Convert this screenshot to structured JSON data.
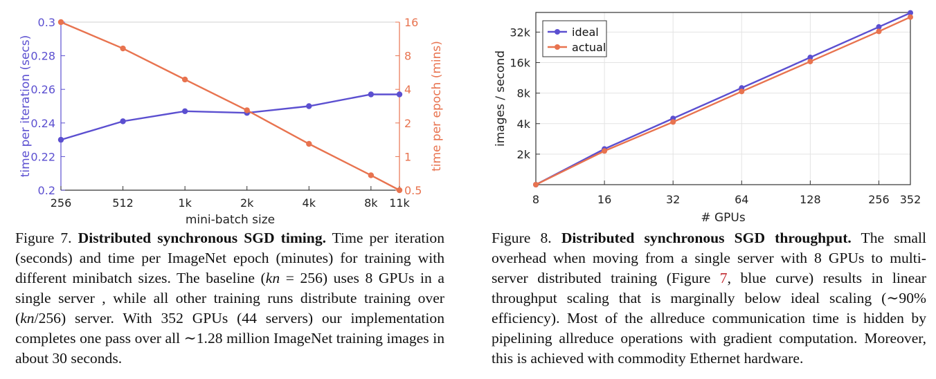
{
  "colors": {
    "blue": "#5b4fd0",
    "orange": "#e8734f",
    "ideal": "#5b4fd0",
    "actual": "#e8734f",
    "ref": "#c0262d"
  },
  "chart_data": [
    {
      "type": "line",
      "title": "",
      "xlabel": "mini-batch size",
      "ylabel": "time per iteration (secs)",
      "ylabel2": "time per epoch (mins)",
      "x_tick_labels": [
        "256",
        "512",
        "1k",
        "2k",
        "4k",
        "8k",
        "11k"
      ],
      "x": [
        256,
        512,
        1024,
        2048,
        4096,
        8192,
        11264
      ],
      "xlim": [
        256,
        11264
      ],
      "x_scale": "log",
      "y_ticks": [
        "0.2",
        "0.22",
        "0.24",
        "0.26",
        "0.28",
        "0.3"
      ],
      "ylim": [
        0.2,
        0.3
      ],
      "y2_ticks": [
        "0.5",
        "1",
        "2",
        "4",
        "8",
        "16"
      ],
      "y2lim": [
        0.5,
        16.0
      ],
      "y2_scale": "log",
      "grid": false,
      "series": [
        {
          "axis": "left",
          "color": "#5b4fd0",
          "values": [
            0.23,
            0.241,
            0.247,
            0.246,
            0.25,
            0.257,
            0.257
          ]
        },
        {
          "axis": "right",
          "color": "#e8734f",
          "values": [
            16.0,
            9.3,
            4.9,
            2.6,
            1.3,
            0.68,
            0.5
          ]
        }
      ]
    },
    {
      "type": "line",
      "title": "",
      "xlabel": "# GPUs",
      "ylabel": "images / second",
      "x_tick_labels": [
        "8",
        "16",
        "32",
        "64",
        "128",
        "256",
        "352"
      ],
      "x": [
        8,
        16,
        32,
        64,
        128,
        256,
        352
      ],
      "xlim": [
        8,
        352
      ],
      "x_scale": "log",
      "y_tick_labels": [
        "2k",
        "4k",
        "8k",
        "16k",
        "32k"
      ],
      "y_ticks": [
        2000,
        4000,
        8000,
        16000,
        32000
      ],
      "ylim": [
        1000,
        50000
      ],
      "y_scale": "log",
      "grid": true,
      "legend": "top-left",
      "series": [
        {
          "name": "ideal",
          "color": "#5b4fd0",
          "values": [
            1000,
            2250,
            4500,
            9000,
            18000,
            36000,
            49500
          ]
        },
        {
          "name": "actual",
          "color": "#e8734f",
          "values": [
            1000,
            2150,
            4150,
            8300,
            16400,
            32500,
            45000
          ]
        }
      ]
    }
  ],
  "captions": {
    "fig7": {
      "label": "Figure 7.",
      "title": "Distributed synchronous SGD timing.",
      "t1": " Time per iteration (seconds) and time per ImageNet epoch (minutes) for training with different minibatch sizes. The baseline (",
      "m1": "kn",
      "t2": " = 256) uses 8 GPUs in a single server , while all other training runs distribute training over (",
      "m2": "kn",
      "t3": "/256) server. With 352 GPUs (44 servers) our implementation completes one pass over all ∼1.28 million ImageNet training images in about 30 seconds."
    },
    "fig8": {
      "label": "Figure 8.",
      "title": "Distributed synchronous SGD throughput.",
      "t1": " The small overhead when moving from a single server with 8 GPUs to multi-server distributed training (Figure ",
      "ref": "7",
      "t2": ", blue curve) results in linear throughput scaling that is marginally below ideal scaling (∼90% efficiency).  Most of the allreduce communication time is hidden by pipelining allreduce operations with gradient computation. Moreover, this is achieved with commodity Ethernet hardware."
    }
  }
}
